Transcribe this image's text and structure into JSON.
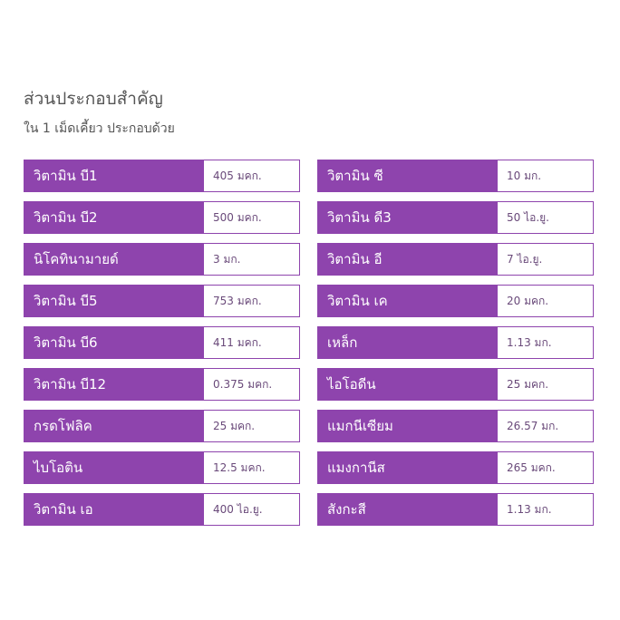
{
  "title": "ส่วนประกอบสำคัญ",
  "subtitle": "ใน 1 เม็ดเคี้ยว ประกอบด้วย",
  "accent_color": "#8e44ad",
  "left": [
    {
      "name": "วิตามิน บี1",
      "value": "405 มคก."
    },
    {
      "name": "วิตามิน บี2",
      "value": "500 มคก."
    },
    {
      "name": "นิโคทินามายด์",
      "value": "3 มก."
    },
    {
      "name": "วิตามิน บี5",
      "value": "753 มคก."
    },
    {
      "name": "วิตามิน บี6",
      "value": "411 มคก."
    },
    {
      "name": "วิตามิน บี12",
      "value": "0.375 มคก."
    },
    {
      "name": "กรดโฟลิค",
      "value": "25 มคก."
    },
    {
      "name": "ไบโอติน",
      "value": "12.5 มคก."
    },
    {
      "name": "วิตามิน เอ",
      "value": "400 ไอ.ยู."
    }
  ],
  "right": [
    {
      "name": "วิตามิน ซี",
      "value": "10 มก."
    },
    {
      "name": "วิตามิน ดี3",
      "value": "50 ไอ.ยู."
    },
    {
      "name": "วิตามิน อี",
      "value": "7 ไอ.ยู."
    },
    {
      "name": "วิตามิน เค",
      "value": "20 มคก."
    },
    {
      "name": "เหล็ก",
      "value": "1.13 มก."
    },
    {
      "name": "ไอโอดีน",
      "value": "25 มคก."
    },
    {
      "name": "แมกนีเซียม",
      "value": "26.57 มก."
    },
    {
      "name": "แมงกานีส",
      "value": "265 มคก."
    },
    {
      "name": "สังกะสี",
      "value": "1.13 มก."
    }
  ]
}
